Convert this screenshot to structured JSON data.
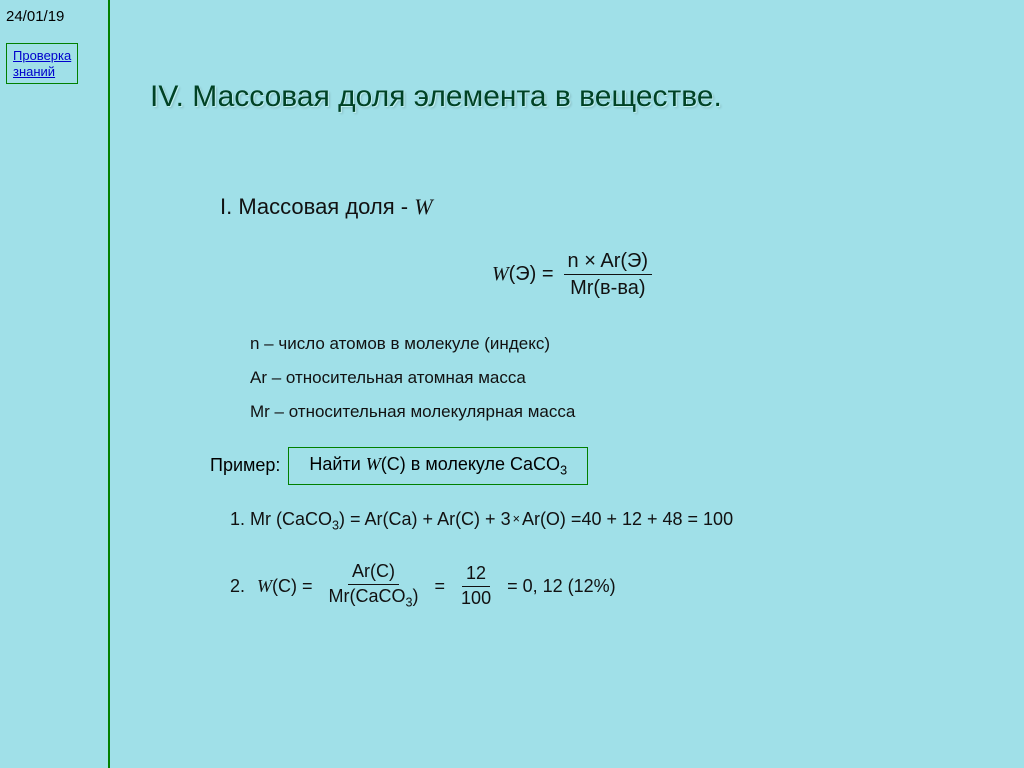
{
  "meta": {
    "date": "24/01/19",
    "link_line1": "Проверка",
    "link_line2": "знаний"
  },
  "title": "IV. Массовая доля элемента в веществе.",
  "section1": {
    "label_prefix": "I.  Массовая доля - ",
    "symbol": "W"
  },
  "main_formula": {
    "lhs_sym": "W",
    "lhs_arg": "(Э) =",
    "numerator": "n × Ar(Э)",
    "denominator": "Mr(в-ва)"
  },
  "definitions": {
    "n": "n – число атомов в молекуле (индекс)",
    "ar": "Ar – относительная атомная масса",
    "mr": "Mr – относительная молекулярная масса"
  },
  "example": {
    "label": "Пример:",
    "box_prefix": "Найти ",
    "box_sym": "W",
    "box_arg": "(C)",
    "box_tail": "  в молекуле CaCO",
    "box_sub": "3"
  },
  "step1": {
    "text_a": "1. Mr (CaCO",
    "sub1": "3",
    "text_b": ") = Ar(Ca) + Ar(C) + 3",
    "mult": "×",
    "text_c": "Ar(O) =40 + 12 + 48 = 100"
  },
  "step2": {
    "label": "2.",
    "lhs_sym": "W",
    "lhs_arg": "(C) =",
    "frac1_num": "Ar(C)",
    "frac1_den_a": "Mr(CaCO",
    "frac1_den_sub": "3",
    "frac1_den_b": ")",
    "eq1": "=",
    "frac2_num": "12",
    "frac2_den": "100",
    "eq2": "=  0, 12   (12%)"
  },
  "colors": {
    "background": "#a0e0e8",
    "border_green": "#008000",
    "title_color": "#004225",
    "link_color": "#0000cc",
    "text": "#111111"
  }
}
